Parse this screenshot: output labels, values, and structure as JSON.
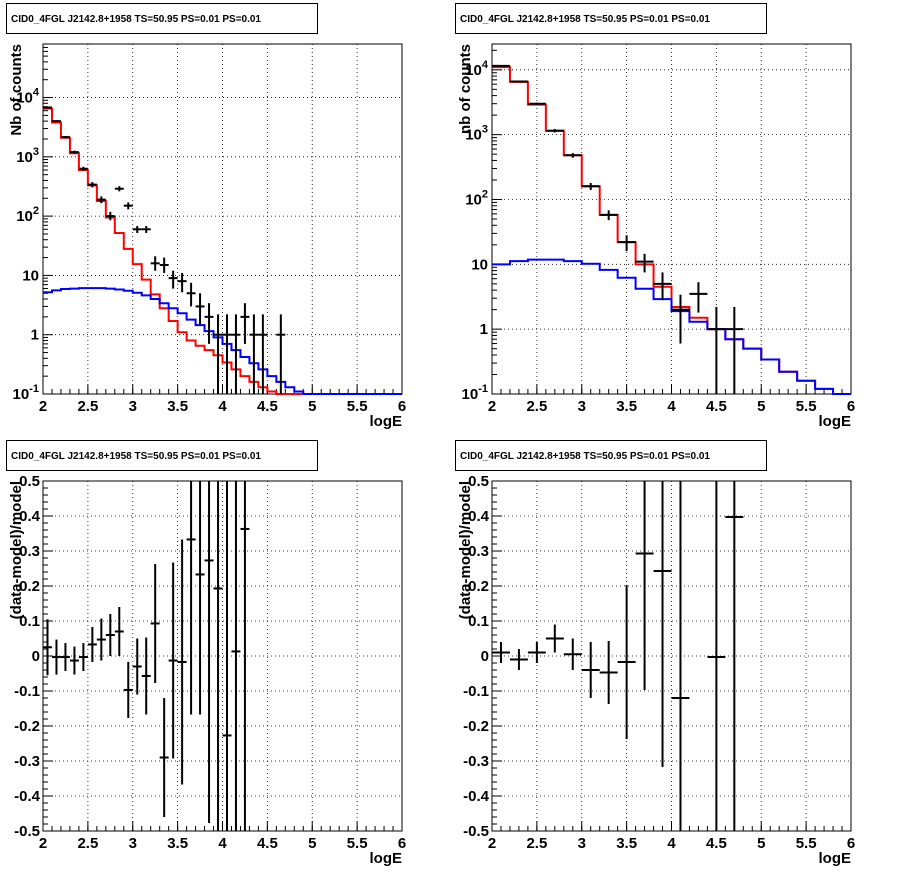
{
  "chart_data": [
    {
      "type": "line",
      "title": "CID0_4FGL J2142.8+1958 TS=50.95 PS=0.01 PS=0.01",
      "xlabel": "logE",
      "ylabel": "Nb of counts",
      "log_y": true,
      "xlim": [
        2,
        6
      ],
      "ylim": [
        0.1,
        80000
      ],
      "grid": true,
      "x_ticks": [
        "2",
        "2.5",
        "3",
        "3.5",
        "4",
        "4.5",
        "5",
        "5.5",
        "6"
      ],
      "y_ticks": [
        {
          "value": 0.1,
          "label": "10^-1"
        },
        {
          "value": 1,
          "label": "1"
        },
        {
          "value": 10,
          "label": "10"
        },
        {
          "value": 100,
          "label": "10^2"
        },
        {
          "value": 1000,
          "label": "10^3"
        },
        {
          "value": 10000,
          "label": "10^4"
        }
      ],
      "bin_edges": [
        2.0,
        2.1,
        2.2,
        2.3,
        2.4,
        2.5,
        2.6,
        2.7,
        2.8,
        2.9,
        3.0,
        3.1,
        3.2,
        3.3,
        3.4,
        3.5,
        3.6,
        3.7,
        3.8,
        3.9,
        4.0,
        4.1,
        4.2,
        4.3,
        4.4,
        4.5,
        4.6,
        4.7,
        4.8,
        4.9,
        5.0,
        5.1,
        5.2,
        5.3,
        5.4,
        5.5,
        5.6,
        5.7,
        5.8,
        5.9,
        6.0
      ],
      "series": [
        {
          "name": "",
          "kind": "step",
          "color": "#ff0000",
          "values": [
            6500,
            3800,
            2100,
            1150,
            600,
            330,
            180,
            95,
            52,
            28,
            15.5,
            8.5,
            4.8,
            2.8,
            1.7,
            1.1,
            0.8,
            0.65,
            0.55,
            0.45,
            0.34,
            0.26,
            0.2,
            0.16,
            0.13,
            0.11,
            0.1,
            0.1,
            0.1,
            0.1,
            0.1,
            0.1,
            0.1,
            0.1,
            0.1,
            0.1,
            0.1,
            0.1,
            0.1,
            0.1
          ]
        },
        {
          "name": "",
          "kind": "step",
          "color": "#0000ff",
          "values": [
            5.2,
            5.6,
            5.9,
            6.0,
            6.1,
            6.1,
            6.1,
            6.0,
            5.8,
            5.5,
            5.1,
            4.6,
            4.0,
            3.4,
            2.8,
            2.3,
            1.8,
            1.45,
            1.15,
            0.9,
            0.7,
            0.55,
            0.42,
            0.33,
            0.26,
            0.2,
            0.16,
            0.13,
            0.11,
            0.1,
            0.1,
            0.1,
            0.1,
            0.1,
            0.1,
            0.1,
            0.1,
            0.1,
            0.1,
            0.1
          ]
        }
      ],
      "data_points": [
        {
          "x": 2.05,
          "y": 6800,
          "ylo": 6650,
          "yhi": 6950
        },
        {
          "x": 2.15,
          "y": 4000,
          "ylo": 3880,
          "yhi": 4130
        },
        {
          "x": 2.25,
          "y": 2150,
          "ylo": 2060,
          "yhi": 2250
        },
        {
          "x": 2.35,
          "y": 1200,
          "ylo": 1130,
          "yhi": 1270
        },
        {
          "x": 2.45,
          "y": 630,
          "ylo": 580,
          "yhi": 680
        },
        {
          "x": 2.55,
          "y": 340,
          "ylo": 305,
          "yhi": 375
        },
        {
          "x": 2.65,
          "y": 190,
          "ylo": 165,
          "yhi": 215
        },
        {
          "x": 2.75,
          "y": 100,
          "ylo": 85,
          "yhi": 118
        },
        {
          "x": 2.85,
          "y": 290,
          "ylo": 262,
          "yhi": 320
        },
        {
          "x": 2.95,
          "y": 150,
          "ylo": 130,
          "yhi": 170
        },
        {
          "x": 3.05,
          "y": 60,
          "ylo": 52,
          "yhi": 68
        },
        {
          "x": 3.15,
          "y": 60,
          "ylo": 52,
          "yhi": 68
        },
        {
          "x": 3.25,
          "y": 16,
          "ylo": 12,
          "yhi": 21
        },
        {
          "x": 3.35,
          "y": 15,
          "ylo": 11,
          "yhi": 20
        },
        {
          "x": 3.45,
          "y": 9,
          "ylo": 6,
          "yhi": 12
        },
        {
          "x": 3.55,
          "y": 8,
          "ylo": 5.2,
          "yhi": 11
        },
        {
          "x": 3.65,
          "y": 5,
          "ylo": 3,
          "yhi": 7.5
        },
        {
          "x": 3.75,
          "y": 3,
          "ylo": 1.5,
          "yhi": 5
        },
        {
          "x": 3.85,
          "y": 2,
          "ylo": 0.7,
          "yhi": 3.4
        },
        {
          "x": 3.95,
          "y": 1,
          "ylo": 0.1,
          "yhi": 2.2
        },
        {
          "x": 4.05,
          "y": 1,
          "ylo": 0.1,
          "yhi": 2.2
        },
        {
          "x": 4.15,
          "y": 1,
          "ylo": 0.1,
          "yhi": 2.2
        },
        {
          "x": 4.25,
          "y": 2,
          "ylo": 0.7,
          "yhi": 3.4
        },
        {
          "x": 4.35,
          "y": 1,
          "ylo": 0.1,
          "yhi": 2.2
        },
        {
          "x": 4.45,
          "y": 1,
          "ylo": 0.1,
          "yhi": 2.2
        },
        {
          "x": 4.65,
          "y": 1,
          "ylo": 0.1,
          "yhi": 2.2
        }
      ]
    },
    {
      "type": "line",
      "title": "CID0_4FGL J2142.8+1958 TS=50.95 PS=0.01 PS=0.01",
      "xlabel": "logE",
      "ylabel": "nb of counts",
      "log_y": true,
      "xlim": [
        2,
        6
      ],
      "ylim": [
        0.1,
        25000
      ],
      "grid": true,
      "x_ticks": [
        "2",
        "2.5",
        "3",
        "3.5",
        "4",
        "4.5",
        "5",
        "5.5",
        "6"
      ],
      "y_ticks": [
        {
          "value": 0.1,
          "label": "10^-1"
        },
        {
          "value": 1,
          "label": "1"
        },
        {
          "value": 10,
          "label": "10"
        },
        {
          "value": 100,
          "label": "10^2"
        },
        {
          "value": 1000,
          "label": "10^3"
        },
        {
          "value": 10000,
          "label": "10^4"
        }
      ],
      "bin_edges": [
        2.0,
        2.2,
        2.4,
        2.6,
        2.8,
        3.0,
        3.2,
        3.4,
        3.6,
        3.8,
        4.0,
        4.2,
        4.4,
        4.6,
        4.8,
        5.0,
        5.2,
        5.4,
        5.6,
        5.8,
        6.0
      ],
      "series": [
        {
          "name": "",
          "kind": "step",
          "color": "#ff0000",
          "values": [
            11000,
            6500,
            2900,
            1150,
            480,
            160,
            58,
            22,
            10,
            4.5,
            2.2,
            1.5,
            1.0,
            0.7,
            0.5,
            0.34,
            0.22,
            0.16,
            0.12,
            0.1
          ]
        },
        {
          "name": "",
          "kind": "step",
          "color": "#0000ff",
          "values": [
            10,
            11.2,
            11.8,
            11.8,
            11.2,
            10.2,
            8.2,
            6.2,
            4.2,
            2.9,
            1.9,
            1.3,
            1.0,
            0.7,
            0.5,
            0.34,
            0.22,
            0.16,
            0.12,
            0.1
          ]
        }
      ],
      "data_points": [
        {
          "x": 2.1,
          "y": 11500,
          "ylo": 11250,
          "yhi": 11750
        },
        {
          "x": 2.3,
          "y": 6600,
          "ylo": 6420,
          "yhi": 6780
        },
        {
          "x": 2.5,
          "y": 3000,
          "ylo": 2880,
          "yhi": 3120
        },
        {
          "x": 2.7,
          "y": 1150,
          "ylo": 1080,
          "yhi": 1220
        },
        {
          "x": 2.9,
          "y": 480,
          "ylo": 440,
          "yhi": 520
        },
        {
          "x": 3.1,
          "y": 160,
          "ylo": 140,
          "yhi": 180
        },
        {
          "x": 3.3,
          "y": 58,
          "ylo": 48,
          "yhi": 68
        },
        {
          "x": 3.5,
          "y": 22,
          "ylo": 16,
          "yhi": 28
        },
        {
          "x": 3.7,
          "y": 11,
          "ylo": 7.5,
          "yhi": 14.5
        },
        {
          "x": 3.9,
          "y": 5,
          "ylo": 2.8,
          "yhi": 7.5
        },
        {
          "x": 4.1,
          "y": 2,
          "ylo": 0.6,
          "yhi": 3.4
        },
        {
          "x": 4.3,
          "y": 3.5,
          "ylo": 1.8,
          "yhi": 5.3
        },
        {
          "x": 4.5,
          "y": 1,
          "ylo": 0.1,
          "yhi": 2.2
        },
        {
          "x": 4.7,
          "y": 1,
          "ylo": 0.1,
          "yhi": 2.2
        }
      ]
    },
    {
      "type": "scatter",
      "title": "CID0_4FGL J2142.8+1958 TS=50.95 PS=0.01 PS=0.01",
      "xlabel": "logE",
      "ylabel": "(data-model)/model",
      "xlim": [
        2,
        6
      ],
      "ylim": [
        -0.5,
        0.5
      ],
      "grid": true,
      "x_ticks": [
        "2",
        "2.5",
        "3",
        "3.5",
        "4",
        "4.5",
        "5",
        "5.5",
        "6"
      ],
      "y_ticks": [
        "-0.5",
        "-0.4",
        "-0.3",
        "-0.2",
        "-0.1",
        "0",
        "0.1",
        "0.2",
        "0.3",
        "0.4",
        "0.5"
      ],
      "bin_width": 0.1,
      "data_points": [
        {
          "x": 2.05,
          "y": 0.025,
          "err": 0.08
        },
        {
          "x": 2.15,
          "y": -0.003,
          "err": 0.05
        },
        {
          "x": 2.25,
          "y": -0.003,
          "err": 0.04
        },
        {
          "x": 2.35,
          "y": -0.013,
          "err": 0.04
        },
        {
          "x": 2.45,
          "y": -0.003,
          "err": 0.04
        },
        {
          "x": 2.55,
          "y": 0.033,
          "err": 0.05
        },
        {
          "x": 2.65,
          "y": 0.047,
          "err": 0.06
        },
        {
          "x": 2.75,
          "y": 0.06,
          "err": 0.06
        },
        {
          "x": 2.85,
          "y": 0.07,
          "err": 0.07
        },
        {
          "x": 2.95,
          "y": -0.097,
          "err": 0.08
        },
        {
          "x": 3.05,
          "y": -0.03,
          "err": 0.08
        },
        {
          "x": 3.15,
          "y": -0.057,
          "err": 0.11
        },
        {
          "x": 3.25,
          "y": 0.093,
          "err": 0.17
        },
        {
          "x": 3.35,
          "y": -0.29,
          "err": 0.17
        },
        {
          "x": 3.45,
          "y": -0.013,
          "err": 0.28
        },
        {
          "x": 3.55,
          "y": -0.017,
          "err": 0.35
        },
        {
          "x": 3.65,
          "y": 0.333,
          "err": 0.5
        },
        {
          "x": 3.75,
          "y": 0.233,
          "err": 0.4
        },
        {
          "x": 3.85,
          "y": 0.273,
          "err": 0.75
        },
        {
          "x": 3.95,
          "y": 0.193,
          "err": 0.7
        },
        {
          "x": 4.05,
          "y": -0.227,
          "err": 0.9
        },
        {
          "x": 4.15,
          "y": 0.013,
          "err": 0.8
        },
        {
          "x": 4.25,
          "y": 0.363,
          "err": 0.9
        }
      ]
    },
    {
      "type": "scatter",
      "title": "CID0_4FGL J2142.8+1958 TS=50.95 PS=0.01 PS=0.01",
      "xlabel": "logE",
      "ylabel": "(data-model)/model",
      "xlim": [
        2,
        6
      ],
      "ylim": [
        -0.5,
        0.5
      ],
      "grid": true,
      "x_ticks": [
        "2",
        "2.5",
        "3",
        "3.5",
        "4",
        "4.5",
        "5",
        "5.5",
        "6"
      ],
      "y_ticks": [
        "-0.5",
        "-0.4",
        "-0.3",
        "-0.2",
        "-0.1",
        "0",
        "0.1",
        "0.2",
        "0.3",
        "0.4",
        "0.5"
      ],
      "bin_width": 0.2,
      "data_points": [
        {
          "x": 2.1,
          "y": 0.01,
          "err": 0.03
        },
        {
          "x": 2.3,
          "y": -0.01,
          "err": 0.03
        },
        {
          "x": 2.5,
          "y": 0.01,
          "err": 0.03
        },
        {
          "x": 2.7,
          "y": 0.05,
          "err": 0.04
        },
        {
          "x": 2.9,
          "y": 0.005,
          "err": 0.045
        },
        {
          "x": 3.1,
          "y": -0.04,
          "err": 0.08
        },
        {
          "x": 3.3,
          "y": -0.047,
          "err": 0.09
        },
        {
          "x": 3.5,
          "y": -0.017,
          "err": 0.22
        },
        {
          "x": 3.7,
          "y": 0.293,
          "err": 0.39
        },
        {
          "x": 3.9,
          "y": 0.243,
          "err": 0.56
        },
        {
          "x": 4.1,
          "y": -0.12,
          "err": 0.9
        },
        {
          "x": 4.5,
          "y": -0.003,
          "err": 0.9
        },
        {
          "x": 4.7,
          "y": 0.397,
          "err": 1.0
        }
      ]
    }
  ]
}
